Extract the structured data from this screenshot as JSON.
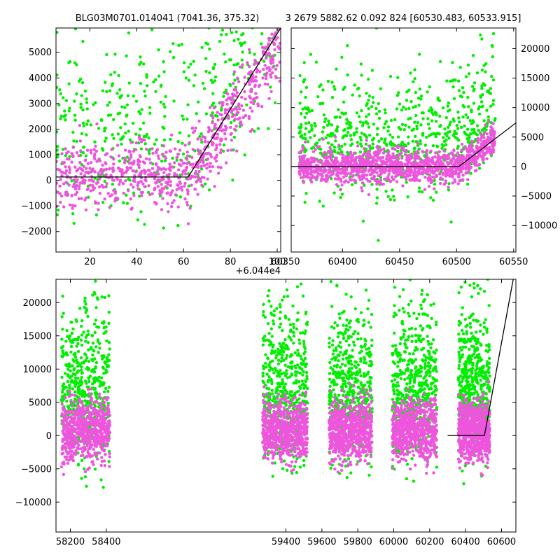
{
  "figure": {
    "title_left": "BLG03M0701.014041 (7041.36, 375.32)",
    "title_right": "3 2679 5882.62 0.092 824 [60530.483, 60533.915]",
    "offset_label": "+6.044e4"
  },
  "colors": {
    "series_a": "#00ee00",
    "series_b": "#ee55dd",
    "model": "#000000"
  },
  "chart_data": [
    {
      "type": "scatter",
      "panel": "top-left",
      "xlim": [
        5.5,
        101.5
      ],
      "ylim": [
        -2800,
        5950
      ],
      "xticks": [
        20,
        40,
        60,
        80,
        100
      ],
      "xtick_labels": [
        "20",
        "40",
        "60",
        "80",
        "100"
      ],
      "yticks": [
        -2000,
        -1000,
        0,
        1000,
        2000,
        3000,
        4000,
        5000
      ],
      "ytick_labels": [
        "−2000",
        "−1000",
        "0",
        "1000",
        "2000",
        "3000",
        "4000",
        "5000"
      ],
      "ytick_side": "left",
      "x_offset_label": "+6.044e4",
      "grid": false,
      "series": [
        {
          "color": "#00ee00"
        },
        {
          "color": "#ee55dd"
        }
      ],
      "model_line": {
        "x": [
          5.5,
          62,
          101.5
        ],
        "y": [
          130,
          130,
          5950
        ]
      }
    },
    {
      "type": "scatter",
      "panel": "top-right",
      "xlim": [
        60355,
        60552
      ],
      "ylim": [
        -14500,
        23500
      ],
      "xticks": [
        60350,
        60400,
        60450,
        60500,
        60550
      ],
      "xtick_labels": [
        "60350",
        "60400",
        "60450",
        "60500",
        "60550"
      ],
      "yticks": [
        -10000,
        -5000,
        0,
        5000,
        10000,
        15000,
        20000
      ],
      "ytick_labels": [
        "−10000",
        "−5000",
        "0",
        "5000",
        "10000",
        "15000",
        "20000"
      ],
      "ytick_side": "right",
      "grid": false,
      "series": [
        {
          "color": "#00ee00"
        },
        {
          "color": "#ee55dd"
        }
      ],
      "model_line": {
        "x": [
          60355,
          60502,
          60552
        ],
        "y": [
          0,
          0,
          7400
        ]
      }
    },
    {
      "type": "scatter",
      "panel": "bottom",
      "xlim": [
        58120,
        60680
      ],
      "ylim": [
        -14500,
        23500
      ],
      "xticks": [
        58200,
        58400,
        59400,
        59600,
        59800,
        60000,
        60200,
        60400,
        60600
      ],
      "xtick_labels": [
        "58200",
        "58400",
        "59400",
        "59600",
        "59800",
        "60000",
        "60200",
        "60400",
        "60600"
      ],
      "yticks": [
        -10000,
        -5000,
        0,
        5000,
        10000,
        15000,
        20000
      ],
      "ytick_labels": [
        "−10000",
        "−5000",
        "0",
        "5000",
        "10000",
        "15000",
        "20000"
      ],
      "ytick_side": "left",
      "grid": false,
      "series": [
        {
          "color": "#00ee00"
        },
        {
          "color": "#ee55dd"
        }
      ],
      "model_line": {
        "x": [
          60300,
          60505,
          60665
        ],
        "y": [
          0,
          0,
          23500
        ]
      }
    }
  ]
}
